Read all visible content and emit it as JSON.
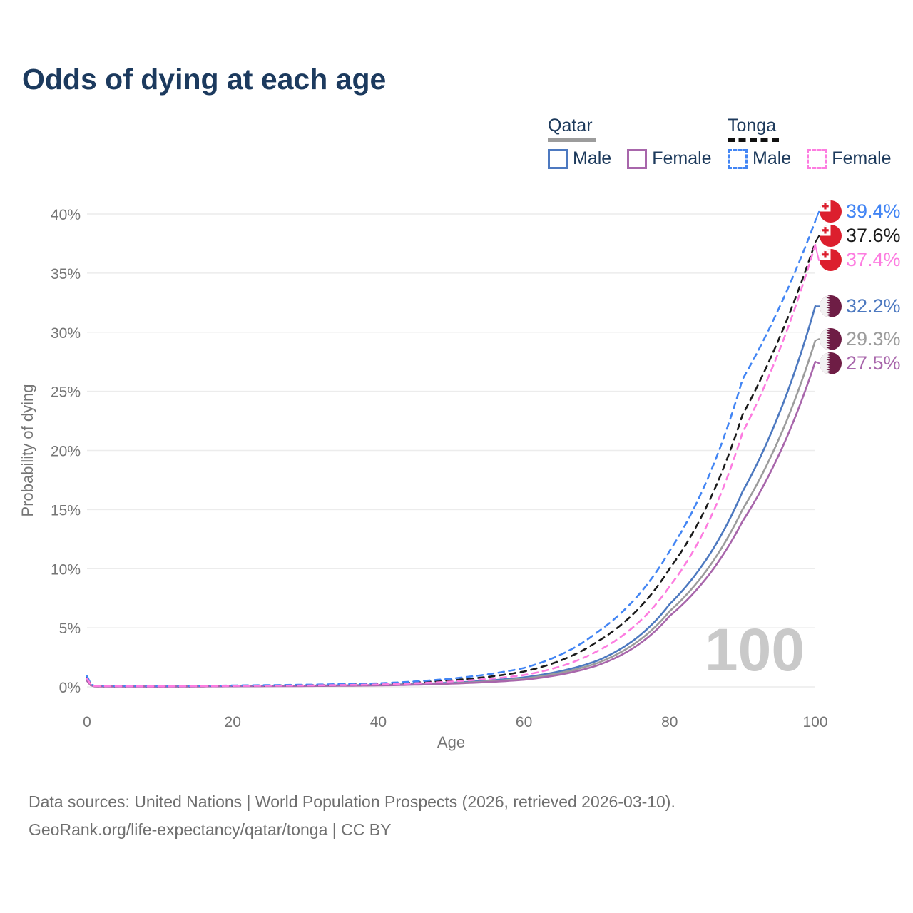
{
  "title": "Odds of dying at each age",
  "legend": {
    "groups": [
      {
        "country": "Qatar",
        "underline": {
          "style": "solid",
          "color": "#9c9c9c",
          "width": 68
        },
        "items": [
          {
            "label": "Male",
            "series": "qatar-male"
          },
          {
            "label": "Female",
            "series": "qatar-female"
          }
        ]
      },
      {
        "country": "Tonga",
        "underline": {
          "style": "dashed",
          "color": "#111111",
          "width": 72
        },
        "items": [
          {
            "label": "Male",
            "series": "tonga-male"
          },
          {
            "label": "Female",
            "series": "tonga-female"
          }
        ]
      }
    ]
  },
  "watermark": "100",
  "footer": {
    "line1": "Data sources: United Nations | World Population Prospects (2026, retrieved 2026-03-10).",
    "line2": "GeoRank.org/life-expectancy/qatar/tonga | CC BY"
  },
  "chart_data": {
    "type": "line",
    "title": "Odds of dying at each age",
    "xlabel": "Age",
    "ylabel": "Probability of dying",
    "xlim": [
      0,
      100
    ],
    "ylim": [
      0,
      40
    ],
    "grid": "horizontal",
    "legend_position": "top-right",
    "xticks": [
      {
        "value": 0,
        "label": "0"
      },
      {
        "value": 20,
        "label": "20"
      },
      {
        "value": 40,
        "label": "40"
      },
      {
        "value": 60,
        "label": "60"
      },
      {
        "value": 80,
        "label": "80"
      },
      {
        "value": 100,
        "label": "100"
      }
    ],
    "yticks": [
      {
        "value": 0,
        "label": "0%"
      },
      {
        "value": 5,
        "label": "5%"
      },
      {
        "value": 10,
        "label": "10%"
      },
      {
        "value": 15,
        "label": "15%"
      },
      {
        "value": 20,
        "label": "20%"
      },
      {
        "value": 25,
        "label": "25%"
      },
      {
        "value": 30,
        "label": "30%"
      },
      {
        "value": 35,
        "label": "35%"
      },
      {
        "value": 40,
        "label": "40%"
      }
    ],
    "ages": [
      0,
      1,
      10,
      20,
      30,
      40,
      50,
      60,
      70,
      80,
      90,
      100
    ],
    "series": [
      {
        "id": "qatar-male",
        "country": "Qatar",
        "sex": "Male",
        "color": "#4d79c0",
        "dashed": false,
        "flag": "qatar",
        "values": [
          0.6,
          0.05,
          0.03,
          0.07,
          0.1,
          0.16,
          0.35,
          0.8,
          2.2,
          7.0,
          16.5,
          32.2
        ],
        "end_label": "32.2%"
      },
      {
        "id": "qatar-both",
        "country": "Qatar",
        "sex": "Both",
        "color": "#9c9c9c",
        "dashed": false,
        "flag": "qatar",
        "values": [
          0.55,
          0.045,
          0.028,
          0.06,
          0.09,
          0.14,
          0.3,
          0.7,
          2.0,
          6.4,
          15.0,
          29.3
        ],
        "end_label": "29.3%"
      },
      {
        "id": "qatar-female",
        "country": "Qatar",
        "sex": "Female",
        "color": "#a866ab",
        "dashed": false,
        "flag": "qatar",
        "values": [
          0.5,
          0.04,
          0.025,
          0.05,
          0.07,
          0.12,
          0.27,
          0.6,
          1.8,
          6.0,
          14.0,
          27.5
        ],
        "end_label": "27.5%"
      },
      {
        "id": "tonga-both",
        "country": "Tonga",
        "sex": "Both",
        "color": "#1a1a1a",
        "dashed": true,
        "flag": "tonga",
        "values": [
          0.8,
          0.07,
          0.045,
          0.1,
          0.15,
          0.25,
          0.55,
          1.3,
          3.8,
          10.0,
          23.0,
          37.6
        ],
        "end_label": "37.6%"
      },
      {
        "id": "tonga-male",
        "country": "Tonga",
        "sex": "Male",
        "color": "#4285f4",
        "dashed": true,
        "flag": "tonga",
        "values": [
          0.9,
          0.08,
          0.05,
          0.12,
          0.18,
          0.3,
          0.7,
          1.6,
          4.6,
          11.5,
          26.0,
          39.4
        ],
        "end_label": "39.4%"
      },
      {
        "id": "tonga-female",
        "country": "Tonga",
        "sex": "Female",
        "color": "#fd7ce0",
        "dashed": true,
        "flag": "tonga",
        "values": [
          0.7,
          0.06,
          0.04,
          0.08,
          0.12,
          0.2,
          0.45,
          1.0,
          3.0,
          8.5,
          21.5,
          37.4
        ],
        "end_label": "37.4%"
      }
    ],
    "flag_colors": {
      "tonga_red": "#dc1f2e",
      "qatar_maroon": "#6e1d45"
    },
    "style": {
      "grid_color": "#ececec",
      "axis_text_color": "#757575",
      "watermark_color": "#c9c9c9"
    }
  }
}
